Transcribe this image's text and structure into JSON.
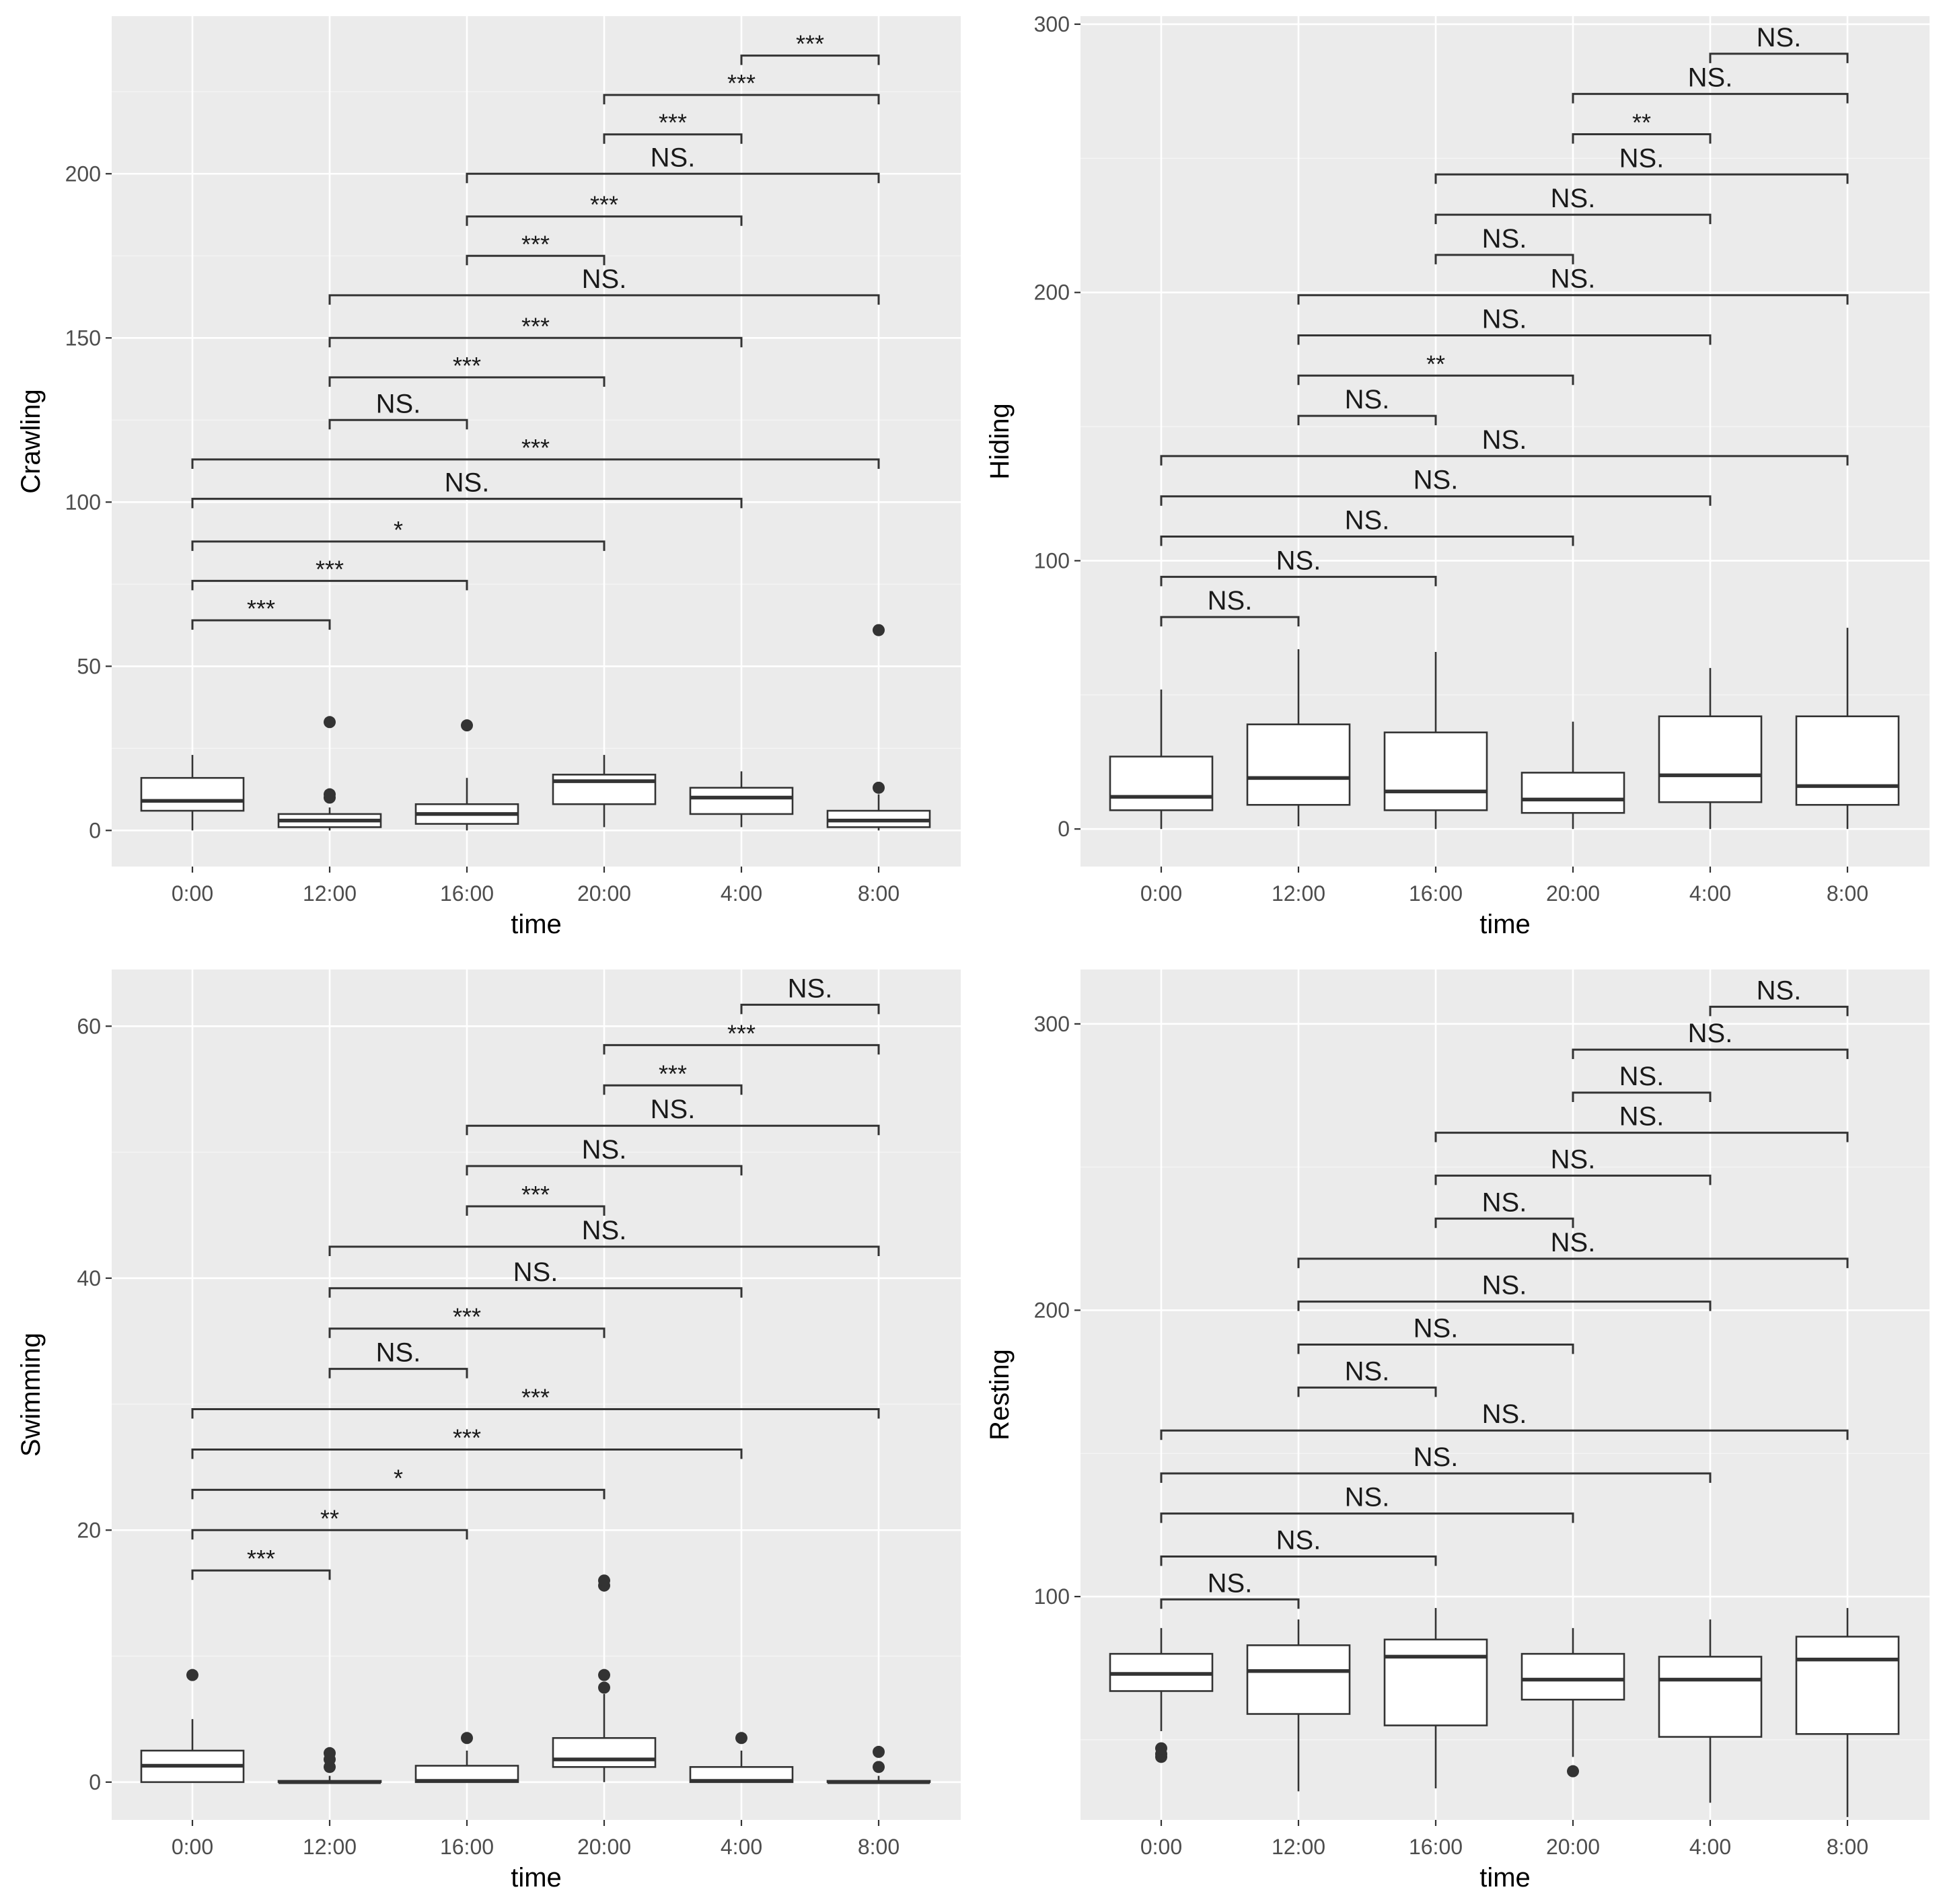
{
  "chart_data": [
    {
      "type": "boxplot",
      "xlabel": "time",
      "ylabel": "Crawling",
      "categories": [
        "0:00",
        "12:00",
        "16:00",
        "20:00",
        "4:00",
        "8:00"
      ],
      "ylim": [
        -11,
        248
      ],
      "yticks": [
        0,
        50,
        100,
        150,
        200
      ],
      "boxes": [
        {
          "category": "0:00",
          "low": 0,
          "q1": 6,
          "median": 9,
          "q3": 16,
          "high": 23,
          "outliers": []
        },
        {
          "category": "12:00",
          "low": 0,
          "q1": 1,
          "median": 3,
          "q3": 5,
          "high": 7,
          "outliers": [
            10,
            11,
            33
          ]
        },
        {
          "category": "16:00",
          "low": 0,
          "q1": 2,
          "median": 5,
          "q3": 8,
          "high": 16,
          "outliers": [
            32
          ]
        },
        {
          "category": "20:00",
          "low": 1,
          "q1": 8,
          "median": 15,
          "q3": 17,
          "high": 23,
          "outliers": []
        },
        {
          "category": "4:00",
          "low": 1,
          "q1": 5,
          "median": 10,
          "q3": 13,
          "high": 18,
          "outliers": []
        },
        {
          "category": "8:00",
          "low": 0,
          "q1": 1,
          "median": 3,
          "q3": 6,
          "high": 11,
          "outliers": [
            13,
            61
          ]
        }
      ],
      "comparisons": [
        {
          "from": "0:00",
          "to": "12:00",
          "y": 64,
          "label": "***"
        },
        {
          "from": "0:00",
          "to": "16:00",
          "y": 76,
          "label": "***"
        },
        {
          "from": "0:00",
          "to": "20:00",
          "y": 88,
          "label": "*"
        },
        {
          "from": "0:00",
          "to": "4:00",
          "y": 101,
          "label": "NS."
        },
        {
          "from": "0:00",
          "to": "8:00",
          "y": 113,
          "label": "***"
        },
        {
          "from": "12:00",
          "to": "16:00",
          "y": 125,
          "label": "NS."
        },
        {
          "from": "12:00",
          "to": "20:00",
          "y": 138,
          "label": "***"
        },
        {
          "from": "12:00",
          "to": "4:00",
          "y": 150,
          "label": "***"
        },
        {
          "from": "12:00",
          "to": "8:00",
          "y": 163,
          "label": "NS."
        },
        {
          "from": "16:00",
          "to": "20:00",
          "y": 175,
          "label": "***"
        },
        {
          "from": "16:00",
          "to": "4:00",
          "y": 187,
          "label": "***"
        },
        {
          "from": "16:00",
          "to": "8:00",
          "y": 200,
          "label": "NS."
        },
        {
          "from": "20:00",
          "to": "4:00",
          "y": 212,
          "label": "***"
        },
        {
          "from": "20:00",
          "to": "8:00",
          "y": 224,
          "label": "***"
        },
        {
          "from": "4:00",
          "to": "8:00",
          "y": 236,
          "label": "***"
        }
      ]
    },
    {
      "type": "boxplot",
      "xlabel": "time",
      "ylabel": "Hiding",
      "categories": [
        "0:00",
        "12:00",
        "16:00",
        "20:00",
        "4:00",
        "8:00"
      ],
      "ylim": [
        -14,
        303
      ],
      "yticks": [
        0,
        100,
        200,
        300
      ],
      "boxes": [
        {
          "category": "0:00",
          "low": 0,
          "q1": 7,
          "median": 12,
          "q3": 27,
          "high": 52,
          "outliers": []
        },
        {
          "category": "12:00",
          "low": 1,
          "q1": 9,
          "median": 19,
          "q3": 39,
          "high": 67,
          "outliers": []
        },
        {
          "category": "16:00",
          "low": 0,
          "q1": 7,
          "median": 14,
          "q3": 36,
          "high": 66,
          "outliers": []
        },
        {
          "category": "20:00",
          "low": 0,
          "q1": 6,
          "median": 11,
          "q3": 21,
          "high": 40,
          "outliers": []
        },
        {
          "category": "4:00",
          "low": 0,
          "q1": 10,
          "median": 20,
          "q3": 42,
          "high": 60,
          "outliers": []
        },
        {
          "category": "8:00",
          "low": 0,
          "q1": 9,
          "median": 16,
          "q3": 42,
          "high": 75,
          "outliers": []
        }
      ],
      "comparisons": [
        {
          "from": "0:00",
          "to": "12:00",
          "y": 79,
          "label": "NS."
        },
        {
          "from": "0:00",
          "to": "16:00",
          "y": 94,
          "label": "NS."
        },
        {
          "from": "0:00",
          "to": "20:00",
          "y": 109,
          "label": "NS."
        },
        {
          "from": "0:00",
          "to": "4:00",
          "y": 124,
          "label": "NS."
        },
        {
          "from": "0:00",
          "to": "8:00",
          "y": 139,
          "label": "NS."
        },
        {
          "from": "12:00",
          "to": "16:00",
          "y": 154,
          "label": "NS."
        },
        {
          "from": "12:00",
          "to": "20:00",
          "y": 169,
          "label": "**"
        },
        {
          "from": "12:00",
          "to": "4:00",
          "y": 184,
          "label": "NS."
        },
        {
          "from": "12:00",
          "to": "8:00",
          "y": 199,
          "label": "NS."
        },
        {
          "from": "16:00",
          "to": "20:00",
          "y": 214,
          "label": "NS."
        },
        {
          "from": "16:00",
          "to": "4:00",
          "y": 229,
          "label": "NS."
        },
        {
          "from": "16:00",
          "to": "8:00",
          "y": 244,
          "label": "NS."
        },
        {
          "from": "20:00",
          "to": "4:00",
          "y": 259,
          "label": "**"
        },
        {
          "from": "20:00",
          "to": "8:00",
          "y": 274,
          "label": "NS."
        },
        {
          "from": "4:00",
          "to": "8:00",
          "y": 289,
          "label": "NS."
        }
      ]
    },
    {
      "type": "boxplot",
      "xlabel": "time",
      "ylabel": "Swimming",
      "categories": [
        "0:00",
        "12:00",
        "16:00",
        "20:00",
        "4:00",
        "8:00"
      ],
      "ylim": [
        -3,
        64.5
      ],
      "yticks": [
        0,
        20,
        40,
        60
      ],
      "boxes": [
        {
          "category": "0:00",
          "low": 0,
          "q1": 0,
          "median": 1.3,
          "q3": 2.5,
          "high": 5,
          "outliers": [
            8.5
          ]
        },
        {
          "category": "12:00",
          "low": 0,
          "q1": 0,
          "median": 0,
          "q3": 0.1,
          "high": 0.5,
          "outliers": [
            1.2,
            1.8,
            2.3
          ]
        },
        {
          "category": "16:00",
          "low": 0,
          "q1": 0,
          "median": 0.1,
          "q3": 1.3,
          "high": 2.5,
          "outliers": [
            3.5
          ]
        },
        {
          "category": "20:00",
          "low": 0,
          "q1": 1.2,
          "median": 1.8,
          "q3": 3.5,
          "high": 7,
          "outliers": [
            7.5,
            8.5,
            15.6,
            16
          ]
        },
        {
          "category": "4:00",
          "low": 0,
          "q1": 0,
          "median": 0.1,
          "q3": 1.2,
          "high": 2.5,
          "outliers": [
            3.5
          ]
        },
        {
          "category": "8:00",
          "low": 0,
          "q1": 0,
          "median": 0,
          "q3": 0.1,
          "high": 0.5,
          "outliers": [
            1.2,
            2.4
          ]
        }
      ],
      "comparisons": [
        {
          "from": "0:00",
          "to": "12:00",
          "y": 16.8,
          "label": "***"
        },
        {
          "from": "0:00",
          "to": "16:00",
          "y": 20,
          "label": "**"
        },
        {
          "from": "0:00",
          "to": "20:00",
          "y": 23.2,
          "label": "*"
        },
        {
          "from": "0:00",
          "to": "4:00",
          "y": 26.4,
          "label": "***"
        },
        {
          "from": "0:00",
          "to": "8:00",
          "y": 29.6,
          "label": "***"
        },
        {
          "from": "12:00",
          "to": "16:00",
          "y": 32.8,
          "label": "NS."
        },
        {
          "from": "12:00",
          "to": "20:00",
          "y": 36,
          "label": "***"
        },
        {
          "from": "12:00",
          "to": "4:00",
          "y": 39.2,
          "label": "NS."
        },
        {
          "from": "12:00",
          "to": "8:00",
          "y": 42.5,
          "label": "NS."
        },
        {
          "from": "16:00",
          "to": "20:00",
          "y": 45.7,
          "label": "***"
        },
        {
          "from": "16:00",
          "to": "4:00",
          "y": 48.9,
          "label": "NS."
        },
        {
          "from": "16:00",
          "to": "8:00",
          "y": 52.1,
          "label": "NS."
        },
        {
          "from": "20:00",
          "to": "4:00",
          "y": 55.3,
          "label": "***"
        },
        {
          "from": "20:00",
          "to": "8:00",
          "y": 58.5,
          "label": "***"
        },
        {
          "from": "4:00",
          "to": "8:00",
          "y": 61.7,
          "label": "NS."
        }
      ]
    },
    {
      "type": "boxplot",
      "xlabel": "time",
      "ylabel": "Resting",
      "categories": [
        "0:00",
        "12:00",
        "16:00",
        "20:00",
        "4:00",
        "8:00"
      ],
      "ylim": [
        22,
        319
      ],
      "yticks": [
        100,
        200,
        300
      ],
      "boxes": [
        {
          "category": "0:00",
          "low": 53,
          "q1": 67,
          "median": 73,
          "q3": 80,
          "high": 89,
          "outliers": [
            44,
            45,
            47
          ]
        },
        {
          "category": "12:00",
          "low": 32,
          "q1": 59,
          "median": 74,
          "q3": 83,
          "high": 92,
          "outliers": []
        },
        {
          "category": "16:00",
          "low": 33,
          "q1": 55,
          "median": 79,
          "q3": 85,
          "high": 96,
          "outliers": []
        },
        {
          "category": "20:00",
          "low": 44,
          "q1": 64,
          "median": 71,
          "q3": 80,
          "high": 89,
          "outliers": [
            39
          ]
        },
        {
          "category": "4:00",
          "low": 28,
          "q1": 51,
          "median": 71,
          "q3": 79,
          "high": 92,
          "outliers": []
        },
        {
          "category": "8:00",
          "low": 23,
          "q1": 52,
          "median": 78,
          "q3": 86,
          "high": 96,
          "outliers": []
        }
      ],
      "comparisons": [
        {
          "from": "0:00",
          "to": "12:00",
          "y": 99,
          "label": "NS."
        },
        {
          "from": "0:00",
          "to": "16:00",
          "y": 114,
          "label": "NS."
        },
        {
          "from": "0:00",
          "to": "20:00",
          "y": 129,
          "label": "NS."
        },
        {
          "from": "0:00",
          "to": "4:00",
          "y": 143,
          "label": "NS."
        },
        {
          "from": "0:00",
          "to": "8:00",
          "y": 158,
          "label": "NS."
        },
        {
          "from": "12:00",
          "to": "16:00",
          "y": 173,
          "label": "NS."
        },
        {
          "from": "12:00",
          "to": "20:00",
          "y": 188,
          "label": "NS."
        },
        {
          "from": "12:00",
          "to": "4:00",
          "y": 203,
          "label": "NS."
        },
        {
          "from": "12:00",
          "to": "8:00",
          "y": 218,
          "label": "NS."
        },
        {
          "from": "16:00",
          "to": "20:00",
          "y": 232,
          "label": "NS."
        },
        {
          "from": "16:00",
          "to": "4:00",
          "y": 247,
          "label": "NS."
        },
        {
          "from": "16:00",
          "to": "8:00",
          "y": 262,
          "label": "NS."
        },
        {
          "from": "20:00",
          "to": "4:00",
          "y": 276,
          "label": "NS."
        },
        {
          "from": "20:00",
          "to": "8:00",
          "y": 291,
          "label": "NS."
        },
        {
          "from": "4:00",
          "to": "8:00",
          "y": 306,
          "label": "NS."
        }
      ]
    }
  ]
}
